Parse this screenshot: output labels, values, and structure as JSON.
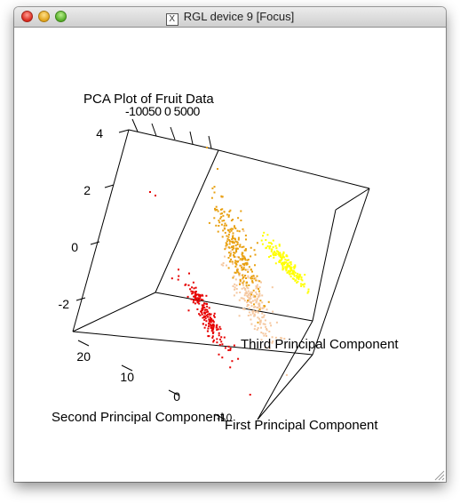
{
  "window": {
    "title": "RGL device 9 [Focus]",
    "icon": "x11-icon",
    "icon_glyph": "X"
  },
  "chart_data": {
    "type": "scatter",
    "title": "PCA Plot of Fruit Data",
    "xlabel": "First Principal Component",
    "ylabel": "Second Principal Component",
    "zlabel": "Third Principal Component",
    "x_ticks": [
      "-100",
      "-50",
      "0",
      "50",
      "100"
    ],
    "x_tick_text": "-10050 0 5000",
    "y_ticks": [
      "0",
      "10",
      "20"
    ],
    "z_ticks": [
      "-2",
      "0",
      "2",
      "4"
    ],
    "overlap_tick_text": "-10",
    "series_colors": [
      "#e60000",
      "#f5c8a0",
      "#e8a010",
      "#ffff00"
    ],
    "legend": "none",
    "grid": false
  }
}
